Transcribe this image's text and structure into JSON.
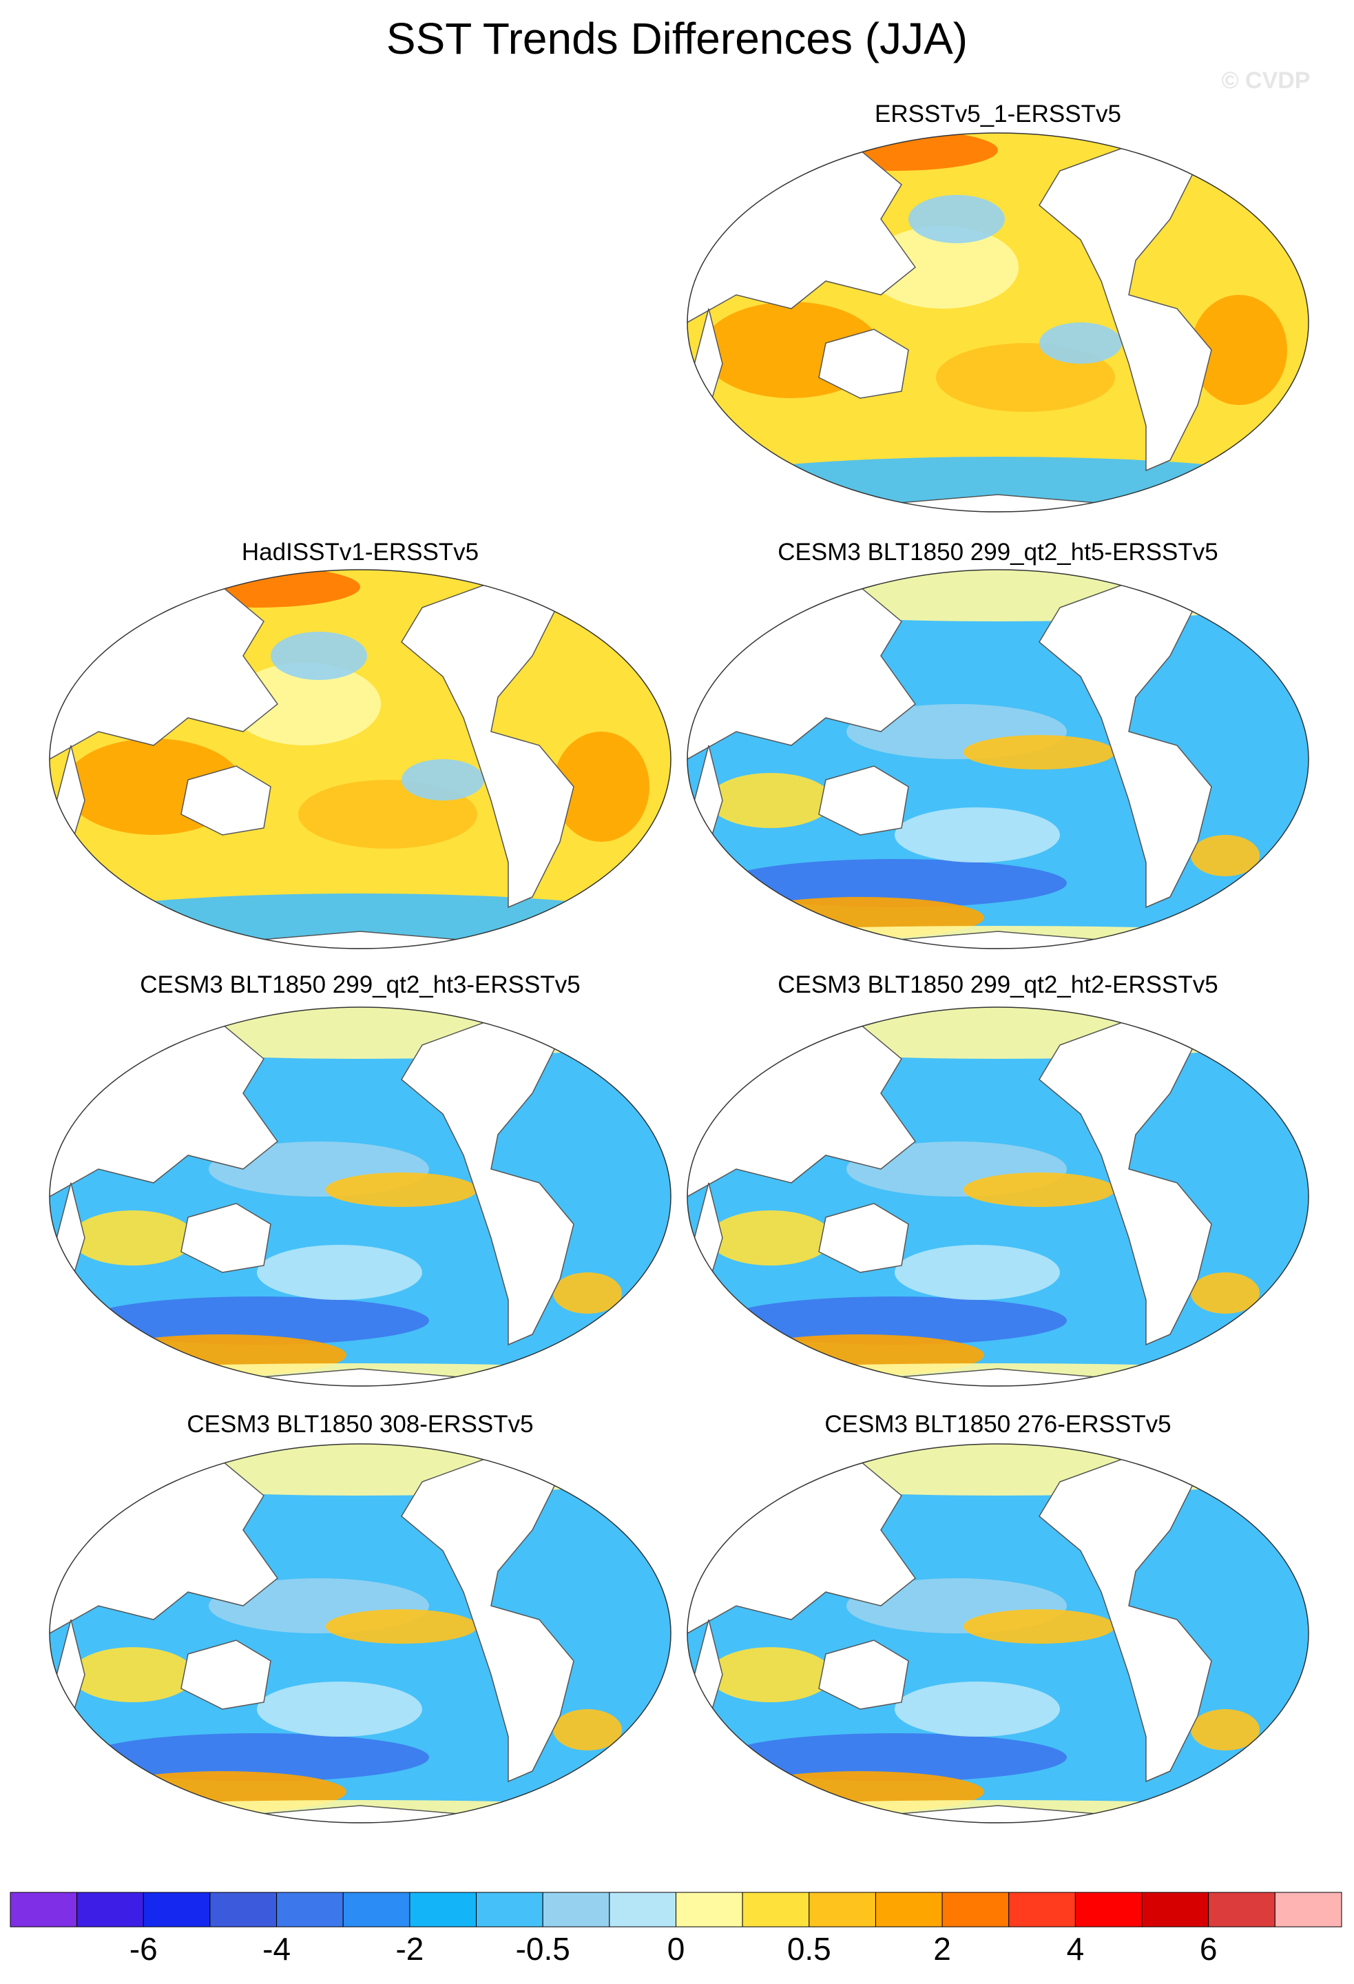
{
  "title": "SST Trends Differences (JJA)",
  "watermark": "© CVDP",
  "panels": [
    {
      "title": "ERSSTv5_1-ERSSTv5"
    },
    {
      "title": "HadISSTv1-ERSSTv5"
    },
    {
      "title": "CESM3 BLT1850 299_qt2_ht5-ERSSTv5"
    },
    {
      "title": "CESM3 BLT1850 299_qt2_ht3-ERSSTv5"
    },
    {
      "title": "CESM3 BLT1850 299_qt2_ht2-ERSSTv5"
    },
    {
      "title": "CESM3 BLT1850 308-ERSSTv5"
    },
    {
      "title": "CESM3 BLT1850 276-ERSSTv5"
    }
  ],
  "colorbar": {
    "colors": [
      "#7f2fe6",
      "#3c1ee6",
      "#1428f0",
      "#3c5adc",
      "#3c78ec",
      "#2a8cf4",
      "#14b4f8",
      "#46c0f8",
      "#96d2f0",
      "#b4e6f8",
      "#fffaa0",
      "#ffe13c",
      "#ffc31e",
      "#ffa500",
      "#ff7800",
      "#ff3c1e",
      "#ff0000",
      "#d70000",
      "#dc3c3c",
      "#ffb4b4"
    ],
    "labels": [
      -6,
      -4,
      -2,
      -0.5,
      0,
      0.5,
      2,
      4,
      6
    ]
  }
}
